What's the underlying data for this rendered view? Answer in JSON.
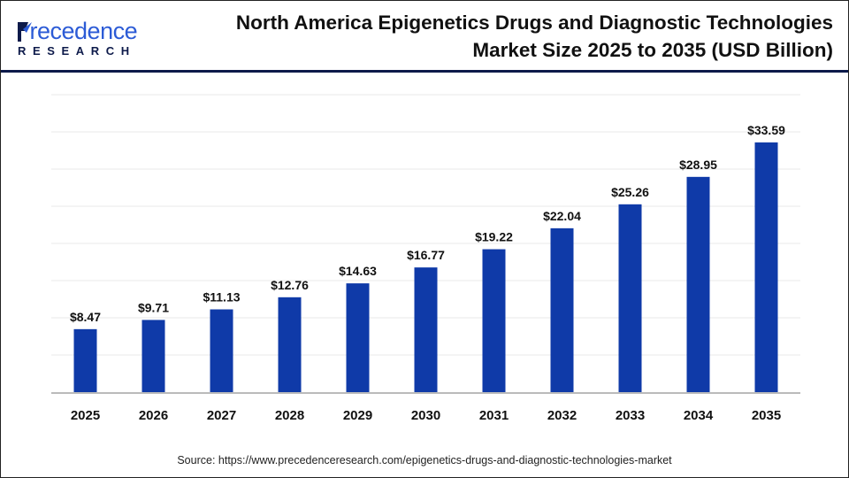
{
  "header": {
    "logo_text": "Precedence Research",
    "title_line1": "North America Epigenetics Drugs and Diagnostic Technologies",
    "title_line2": "Market Size 2025 to 2035 (USD Billion)"
  },
  "footer": {
    "source": "Source: https://www.precedenceresearch.com/epigenetics-drugs-and-diagnostic-technologies-market"
  },
  "colors": {
    "bar": "#0f3aa8",
    "header_line": "#0d1a4a",
    "grid": "#e8e8e8",
    "axis": "#bbbbbb"
  },
  "chart_data": {
    "type": "bar",
    "title": "North America Epigenetics Drugs and Diagnostic Technologies Market Size 2025 to 2035 (USD Billion)",
    "categories": [
      "2025",
      "2026",
      "2027",
      "2028",
      "2029",
      "2030",
      "2031",
      "2032",
      "2033",
      "2034",
      "2035"
    ],
    "values": [
      8.47,
      9.71,
      11.13,
      12.76,
      14.63,
      16.77,
      19.22,
      22.04,
      25.26,
      28.95,
      33.59
    ],
    "data_labels": [
      "$8.47",
      "$9.71",
      "$11.13",
      "$12.76",
      "$14.63",
      "$16.77",
      "$19.22",
      "$22.04",
      "$25.26",
      "$28.95",
      "$33.59"
    ],
    "xlabel": "",
    "ylabel": "",
    "ylim": [
      0,
      40
    ],
    "grid_step": 5,
    "grid": true,
    "y_tick_labels_shown": false
  }
}
